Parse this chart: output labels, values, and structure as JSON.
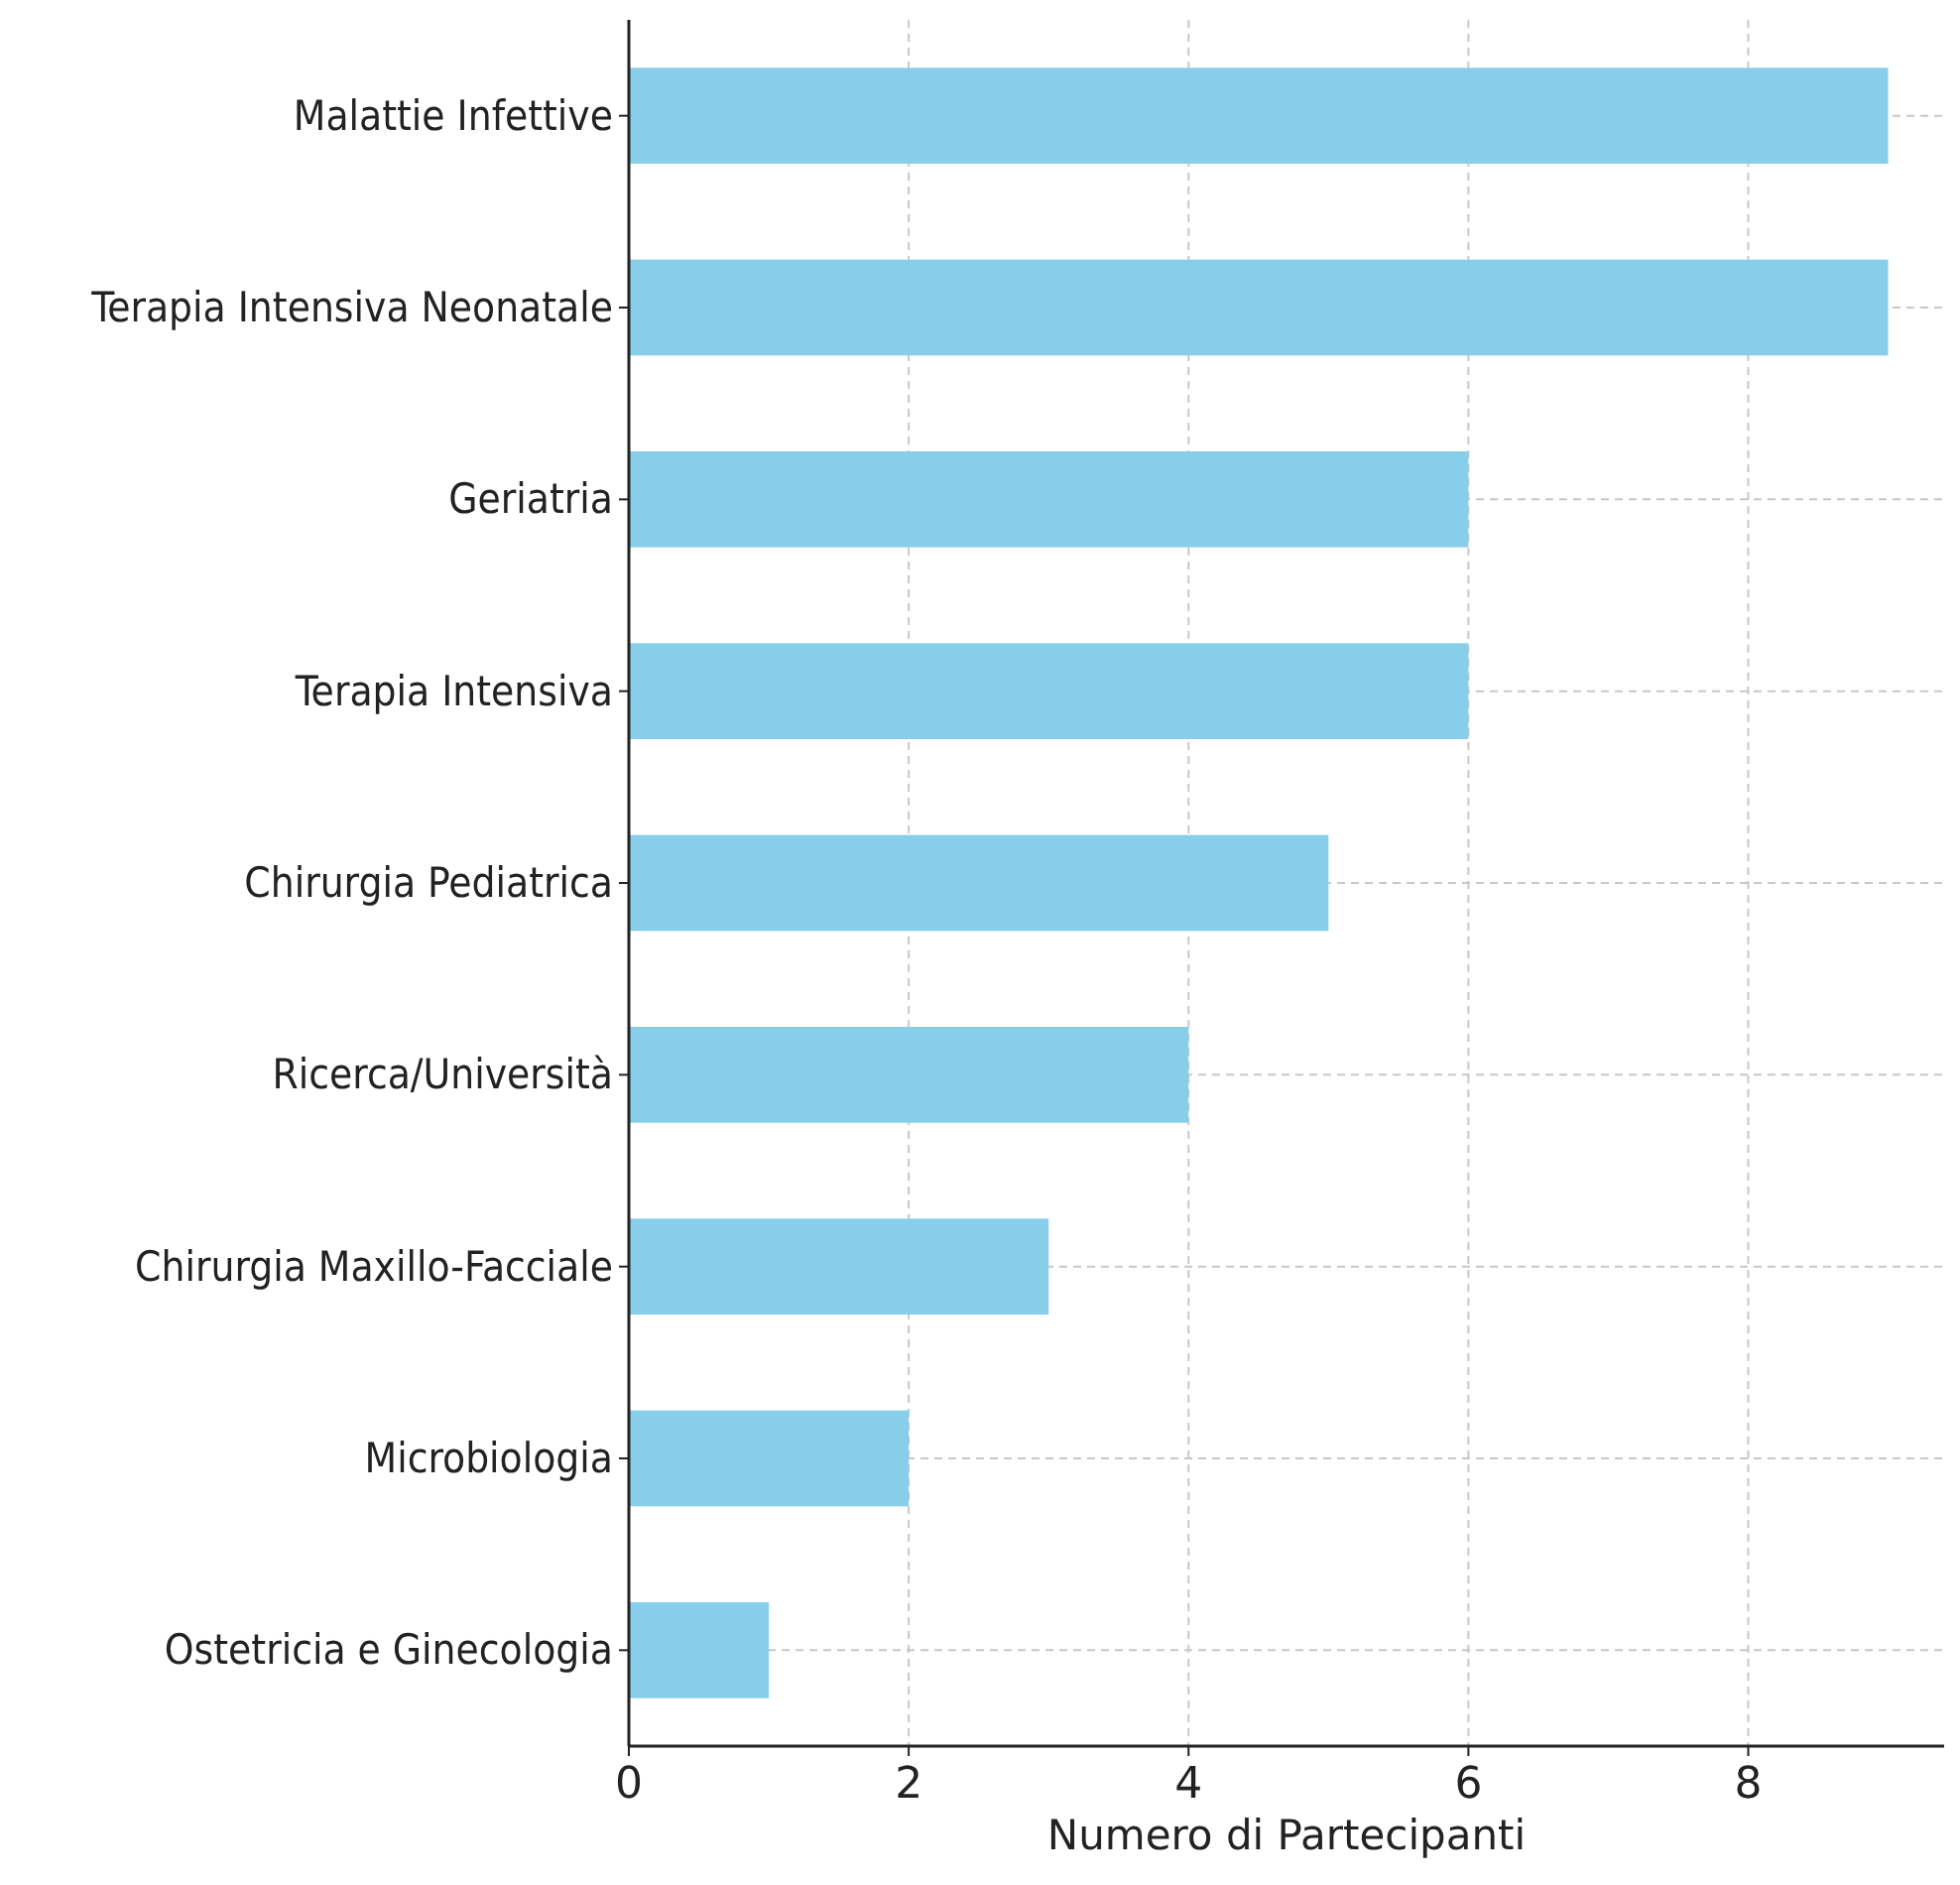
{
  "chart_data": {
    "type": "bar",
    "orientation": "horizontal",
    "categories": [
      "Malattie Infettive",
      "Terapia Intensiva Neonatale",
      "Geriatria",
      "Terapia Intensiva",
      "Chirurgia Pediatrica",
      "Ricerca/Università",
      "Chirurgia Maxillo-Facciale",
      "Microbiologia",
      "Ostetricia e Ginecologia"
    ],
    "values": [
      9,
      9,
      6,
      6,
      5,
      4,
      3,
      2,
      1
    ],
    "color": "#87ceeb",
    "xlabel": "Numero di Partecipanti",
    "xlim": [
      0,
      9.4
    ],
    "xticks": [
      0,
      2,
      4,
      6,
      8
    ],
    "grid": true
  }
}
